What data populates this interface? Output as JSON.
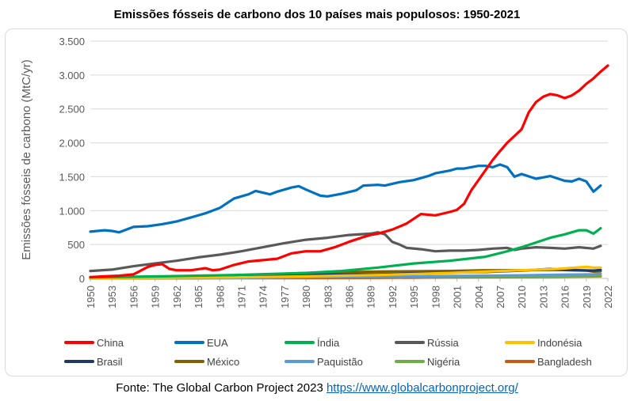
{
  "chart_data": {
    "type": "line",
    "title": "Emissões fósseis de carbono dos 10 países mais populosos: 1950-2021",
    "xlabel": "",
    "ylabel": "Emissões fósseis de carbono (MtC/yr)",
    "xlim": [
      1950,
      2022
    ],
    "ylim": [
      0,
      3500
    ],
    "yticks": [
      0,
      500,
      1000,
      1500,
      2000,
      2500,
      3000,
      3500
    ],
    "ytick_labels": [
      "0",
      "500",
      "1.000",
      "1.500",
      "2.000",
      "2.500",
      "3.000",
      "3.500"
    ],
    "xticks": [
      1950,
      1953,
      1956,
      1959,
      1962,
      1965,
      1968,
      1971,
      1974,
      1977,
      1980,
      1983,
      1986,
      1989,
      1992,
      1995,
      1998,
      2001,
      2004,
      2007,
      2010,
      2013,
      2016,
      2019,
      2022
    ],
    "xtick_labels": [
      "1950",
      "1953",
      "1956",
      "1959",
      "1962",
      "1965",
      "1968",
      "1971",
      "1974",
      "1977",
      "1980",
      "1983",
      "1986",
      "1989",
      "1992",
      "1995",
      "1998",
      "2001",
      "2004",
      "2007",
      "2010",
      "2013",
      "2016",
      "2019",
      "2022"
    ],
    "grid": "horizontal",
    "legend_position": "bottom",
    "series": [
      {
        "name": "China",
        "color": "#ff0000",
        "points": [
          [
            1950,
            20
          ],
          [
            1952,
            30
          ],
          [
            1954,
            40
          ],
          [
            1956,
            60
          ],
          [
            1958,
            170
          ],
          [
            1959,
            200
          ],
          [
            1960,
            210
          ],
          [
            1961,
            140
          ],
          [
            1962,
            120
          ],
          [
            1964,
            120
          ],
          [
            1966,
            150
          ],
          [
            1967,
            120
          ],
          [
            1968,
            130
          ],
          [
            1970,
            200
          ],
          [
            1972,
            250
          ],
          [
            1974,
            270
          ],
          [
            1976,
            290
          ],
          [
            1978,
            370
          ],
          [
            1980,
            400
          ],
          [
            1982,
            400
          ],
          [
            1984,
            460
          ],
          [
            1986,
            540
          ],
          [
            1988,
            610
          ],
          [
            1989,
            640
          ],
          [
            1990,
            660
          ],
          [
            1992,
            720
          ],
          [
            1994,
            810
          ],
          [
            1996,
            950
          ],
          [
            1998,
            930
          ],
          [
            2000,
            980
          ],
          [
            2001,
            1010
          ],
          [
            2002,
            1100
          ],
          [
            2003,
            1300
          ],
          [
            2004,
            1450
          ],
          [
            2005,
            1600
          ],
          [
            2006,
            1750
          ],
          [
            2007,
            1880
          ],
          [
            2008,
            2000
          ],
          [
            2009,
            2100
          ],
          [
            2010,
            2200
          ],
          [
            2011,
            2450
          ],
          [
            2012,
            2600
          ],
          [
            2013,
            2680
          ],
          [
            2014,
            2720
          ],
          [
            2015,
            2700
          ],
          [
            2016,
            2660
          ],
          [
            2017,
            2700
          ],
          [
            2018,
            2770
          ],
          [
            2019,
            2870
          ],
          [
            2020,
            2950
          ],
          [
            2021,
            3050
          ],
          [
            2022,
            3140
          ]
        ]
      },
      {
        "name": "EUA",
        "color": "#0070c0",
        "points": [
          [
            1950,
            690
          ],
          [
            1952,
            710
          ],
          [
            1953,
            700
          ],
          [
            1954,
            680
          ],
          [
            1956,
            760
          ],
          [
            1958,
            770
          ],
          [
            1960,
            800
          ],
          [
            1962,
            840
          ],
          [
            1964,
            900
          ],
          [
            1966,
            960
          ],
          [
            1968,
            1040
          ],
          [
            1970,
            1180
          ],
          [
            1972,
            1240
          ],
          [
            1973,
            1290
          ],
          [
            1975,
            1240
          ],
          [
            1976,
            1280
          ],
          [
            1978,
            1340
          ],
          [
            1979,
            1360
          ],
          [
            1980,
            1310
          ],
          [
            1982,
            1220
          ],
          [
            1983,
            1210
          ],
          [
            1985,
            1250
          ],
          [
            1987,
            1300
          ],
          [
            1988,
            1370
          ],
          [
            1990,
            1380
          ],
          [
            1991,
            1370
          ],
          [
            1993,
            1420
          ],
          [
            1995,
            1450
          ],
          [
            1997,
            1510
          ],
          [
            1998,
            1550
          ],
          [
            2000,
            1590
          ],
          [
            2001,
            1620
          ],
          [
            2002,
            1620
          ],
          [
            2004,
            1660
          ],
          [
            2005,
            1660
          ],
          [
            2006,
            1640
          ],
          [
            2007,
            1680
          ],
          [
            2008,
            1640
          ],
          [
            2009,
            1500
          ],
          [
            2010,
            1540
          ],
          [
            2012,
            1470
          ],
          [
            2013,
            1490
          ],
          [
            2014,
            1510
          ],
          [
            2016,
            1440
          ],
          [
            2017,
            1430
          ],
          [
            2018,
            1470
          ],
          [
            2019,
            1430
          ],
          [
            2020,
            1280
          ],
          [
            2021,
            1370
          ]
        ]
      },
      {
        "name": "Índia",
        "color": "#00b050",
        "points": [
          [
            1950,
            15
          ],
          [
            1960,
            30
          ],
          [
            1970,
            50
          ],
          [
            1980,
            80
          ],
          [
            1985,
            110
          ],
          [
            1990,
            160
          ],
          [
            1995,
            220
          ],
          [
            2000,
            260
          ],
          [
            2005,
            320
          ],
          [
            2008,
            400
          ],
          [
            2010,
            460
          ],
          [
            2012,
            530
          ],
          [
            2014,
            600
          ],
          [
            2016,
            650
          ],
          [
            2018,
            710
          ],
          [
            2019,
            710
          ],
          [
            2020,
            660
          ],
          [
            2021,
            740
          ]
        ]
      },
      {
        "name": "Rússia",
        "color": "#595959",
        "points": [
          [
            1950,
            110
          ],
          [
            1953,
            130
          ],
          [
            1956,
            180
          ],
          [
            1959,
            220
          ],
          [
            1962,
            260
          ],
          [
            1965,
            310
          ],
          [
            1968,
            350
          ],
          [
            1971,
            400
          ],
          [
            1974,
            460
          ],
          [
            1977,
            520
          ],
          [
            1980,
            570
          ],
          [
            1983,
            600
          ],
          [
            1986,
            640
          ],
          [
            1989,
            660
          ],
          [
            1990,
            680
          ],
          [
            1991,
            650
          ],
          [
            1992,
            540
          ],
          [
            1993,
            500
          ],
          [
            1994,
            450
          ],
          [
            1996,
            430
          ],
          [
            1998,
            400
          ],
          [
            2000,
            410
          ],
          [
            2002,
            410
          ],
          [
            2004,
            420
          ],
          [
            2006,
            440
          ],
          [
            2008,
            450
          ],
          [
            2009,
            420
          ],
          [
            2010,
            440
          ],
          [
            2012,
            460
          ],
          [
            2014,
            450
          ],
          [
            2016,
            440
          ],
          [
            2018,
            460
          ],
          [
            2020,
            440
          ],
          [
            2021,
            480
          ]
        ]
      },
      {
        "name": "Indonésia",
        "color": "#ffc000",
        "points": [
          [
            1950,
            5
          ],
          [
            1970,
            15
          ],
          [
            1980,
            30
          ],
          [
            1990,
            50
          ],
          [
            2000,
            80
          ],
          [
            2005,
            100
          ],
          [
            2010,
            120
          ],
          [
            2015,
            140
          ],
          [
            2019,
            170
          ],
          [
            2020,
            160
          ],
          [
            2021,
            160
          ]
        ]
      },
      {
        "name": "Brasil",
        "color": "#1f3864",
        "points": [
          [
            1950,
            5
          ],
          [
            1970,
            30
          ],
          [
            1980,
            50
          ],
          [
            1990,
            60
          ],
          [
            2000,
            85
          ],
          [
            2005,
            95
          ],
          [
            2010,
            115
          ],
          [
            2014,
            140
          ],
          [
            2016,
            125
          ],
          [
            2018,
            120
          ],
          [
            2020,
            115
          ],
          [
            2021,
            125
          ]
        ]
      },
      {
        "name": "México",
        "color": "#806000",
        "points": [
          [
            1950,
            10
          ],
          [
            1960,
            20
          ],
          [
            1970,
            40
          ],
          [
            1980,
            80
          ],
          [
            1990,
            100
          ],
          [
            2000,
            110
          ],
          [
            2005,
            120
          ],
          [
            2010,
            120
          ],
          [
            2015,
            125
          ],
          [
            2019,
            115
          ],
          [
            2020,
            100
          ],
          [
            2021,
            105
          ]
        ]
      },
      {
        "name": "Paquistão",
        "color": "#5b9bd5",
        "points": [
          [
            1950,
            2
          ],
          [
            1970,
            8
          ],
          [
            1980,
            15
          ],
          [
            1990,
            25
          ],
          [
            2000,
            35
          ],
          [
            2010,
            45
          ],
          [
            2015,
            55
          ],
          [
            2020,
            60
          ],
          [
            2021,
            65
          ]
        ]
      },
      {
        "name": "Nigéria",
        "color": "#70ad47",
        "points": [
          [
            1950,
            1
          ],
          [
            1970,
            8
          ],
          [
            1980,
            20
          ],
          [
            1990,
            25
          ],
          [
            2000,
            25
          ],
          [
            2010,
            25
          ],
          [
            2015,
            30
          ],
          [
            2021,
            35
          ]
        ]
      },
      {
        "name": "Bangladesh",
        "color": "#c55a11",
        "points": [
          [
            1950,
            1
          ],
          [
            1970,
            3
          ],
          [
            1980,
            5
          ],
          [
            1990,
            8
          ],
          [
            2000,
            15
          ],
          [
            2010,
            20
          ],
          [
            2015,
            25
          ],
          [
            2021,
            30
          ]
        ]
      }
    ]
  },
  "source": {
    "text": "Fonte: The Global Carbon Project 2023",
    "url_text": "https://www.globalcarbonproject.org/"
  }
}
